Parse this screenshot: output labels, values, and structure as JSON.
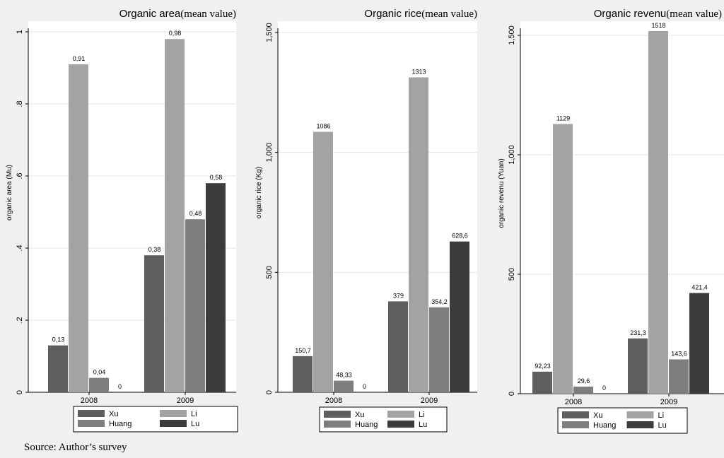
{
  "source_note": "Source: Author’s survey",
  "colors": {
    "background": "#f0f0f0",
    "plot_bg": "#ffffff",
    "grid": "#e4e4e4",
    "Xu": "#5e5e5e",
    "Li": "#a3a3a3",
    "Huang": "#7e7e7e",
    "Lu": "#3c3c3c"
  },
  "chart_data": [
    {
      "type": "bar",
      "title": "Organic area",
      "title_suffix": "(mean value)",
      "ylabel": "organic area (Mu)",
      "xlabel": "",
      "categories": [
        "2008",
        "2009"
      ],
      "ylim": [
        0,
        1
      ],
      "yticks": [
        0,
        0.2,
        0.4,
        0.6,
        0.8,
        1
      ],
      "ytick_labels": [
        "0",
        ".2",
        ".4",
        ".6",
        ".8",
        "1"
      ],
      "grid": true,
      "legend": "bottom",
      "series": [
        {
          "name": "Xu",
          "values": [
            0.13,
            0.38
          ],
          "labels": [
            "0,13",
            "0,38"
          ]
        },
        {
          "name": "Li",
          "values": [
            0.91,
            0.98
          ],
          "labels": [
            "0,91",
            "0,98"
          ]
        },
        {
          "name": "Huang",
          "values": [
            0.04,
            0.48
          ],
          "labels": [
            "0,04",
            "0,48"
          ]
        },
        {
          "name": "Lu",
          "values": [
            0,
            0.58
          ],
          "labels": [
            "0",
            "0,58"
          ]
        }
      ]
    },
    {
      "type": "bar",
      "title": "Organic rice",
      "title_suffix": "(mean value)",
      "ylabel": "organic rice (Kg)",
      "xlabel": "",
      "categories": [
        "2008",
        "2009"
      ],
      "ylim": [
        0,
        1500
      ],
      "yticks": [
        0,
        500,
        1000,
        1500
      ],
      "ytick_labels": [
        "0",
        "500",
        "1,000",
        "1,500"
      ],
      "grid": true,
      "legend": "bottom",
      "series": [
        {
          "name": "Xu",
          "values": [
            150.7,
            379
          ],
          "labels": [
            "150,7",
            "379"
          ]
        },
        {
          "name": "Li",
          "values": [
            1086,
            1313
          ],
          "labels": [
            "1086",
            "1313"
          ]
        },
        {
          "name": "Huang",
          "values": [
            48.33,
            354.2
          ],
          "labels": [
            "48,33",
            "354,2"
          ]
        },
        {
          "name": "Lu",
          "values": [
            0,
            628.6
          ],
          "labels": [
            "0",
            "628,6"
          ]
        }
      ]
    },
    {
      "type": "bar",
      "title": "Organic revenu",
      "title_suffix": "(mean value)",
      "ylabel": "organic revenu (Yuan)",
      "xlabel": "",
      "categories": [
        "2008",
        "2009"
      ],
      "ylim": [
        0,
        1500
      ],
      "yticks": [
        0,
        500,
        1000,
        1500
      ],
      "ytick_labels": [
        "0",
        "500",
        "1,000",
        "1,500"
      ],
      "grid": true,
      "legend": "bottom",
      "series": [
        {
          "name": "Xu",
          "values": [
            92.23,
            231.3
          ],
          "labels": [
            "92,23",
            "231,3"
          ]
        },
        {
          "name": "Li",
          "values": [
            1129,
            1518
          ],
          "labels": [
            "1129",
            "1518"
          ]
        },
        {
          "name": "Huang",
          "values": [
            29.6,
            143.6
          ],
          "labels": [
            "29,6",
            "143,6"
          ]
        },
        {
          "name": "Lu",
          "values": [
            0,
            421.4
          ],
          "labels": [
            "0",
            "421,4"
          ]
        }
      ]
    }
  ]
}
